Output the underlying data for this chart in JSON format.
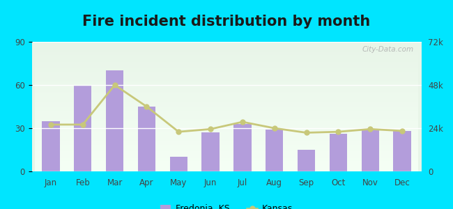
{
  "title": "Fire incident distribution by month",
  "months": [
    "Jan",
    "Feb",
    "Mar",
    "Apr",
    "May",
    "Jun",
    "Jul",
    "Aug",
    "Sep",
    "Oct",
    "Nov",
    "Dec"
  ],
  "fredonia_values": [
    35,
    60,
    70,
    45,
    10,
    27,
    33,
    29,
    15,
    26,
    30,
    28
  ],
  "kansas_values": [
    26000,
    26000,
    48000,
    36000,
    22000,
    23500,
    27500,
    24000,
    21500,
    22000,
    23500,
    22500
  ],
  "bar_color": "#b39ddb",
  "line_color": "#c8c87a",
  "line_marker_color": "#c8c87a",
  "background_outer": "#00e5ff",
  "ylim_left": [
    0,
    90
  ],
  "ylim_right": [
    0,
    72000
  ],
  "yticks_left": [
    0,
    30,
    60,
    90
  ],
  "yticks_right": [
    0,
    24000,
    48000,
    72000
  ],
  "ytick_labels_right": [
    "0",
    "24k",
    "48k",
    "72k"
  ],
  "title_fontsize": 15,
  "legend_fredonia": "Fredonia, KS",
  "legend_kansas": "Kansas"
}
